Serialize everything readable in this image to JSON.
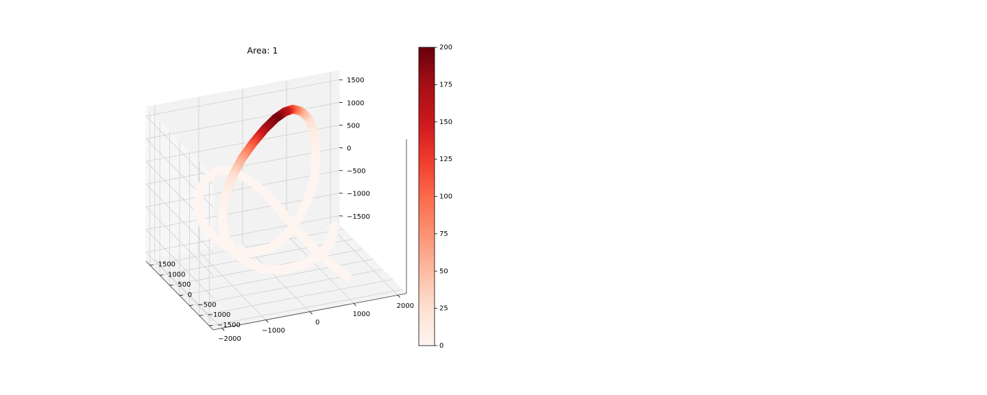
{
  "chart_data": {
    "type": "scatter3d",
    "title": "Area: 1",
    "xlabel": "",
    "ylabel": "",
    "zlabel": "",
    "x_ticks": [
      "−2000",
      "−1000",
      "0",
      "1000",
      "2000"
    ],
    "y_ticks": [
      "−1500",
      "−1000",
      "−500",
      "0",
      "500",
      "1000",
      "1500"
    ],
    "z_ticks": [
      "−1500",
      "−1000",
      "−500",
      "0",
      "500",
      "1000",
      "1500"
    ],
    "xlim": [
      -2200,
      2200
    ],
    "ylim": [
      -1700,
      1700
    ],
    "zlim": [
      -1700,
      1700
    ],
    "grid": true,
    "colormap": "Reds",
    "colorbar": {
      "min": 0,
      "max": 200,
      "ticks": [
        "0",
        "25",
        "50",
        "75",
        "100",
        "125",
        "150",
        "175",
        "200"
      ],
      "colors": [
        "#fff5f0",
        "#fee0d2",
        "#fcbba1",
        "#fc9272",
        "#fb6a4a",
        "#ef3b2c",
        "#cb181d",
        "#a50f15",
        "#67000d"
      ]
    },
    "series": [
      {
        "points": [
          {
            "x": 950,
            "y": -1500,
            "z": -1200,
            "c": 0
          },
          {
            "x": 700,
            "y": -1100,
            "z": -1000,
            "c": 0
          },
          {
            "x": 500,
            "y": -700,
            "z": -800,
            "c": 0
          },
          {
            "x": 300,
            "y": -300,
            "z": -550,
            "c": 0
          },
          {
            "x": 150,
            "y": 100,
            "z": -300,
            "c": 0
          },
          {
            "x": 0,
            "y": 450,
            "z": -80,
            "c": 0
          },
          {
            "x": -200,
            "y": 750,
            "z": 100,
            "c": 0
          },
          {
            "x": -450,
            "y": 1000,
            "z": 250,
            "c": 0
          },
          {
            "x": -750,
            "y": 1150,
            "z": 300,
            "c": 0
          },
          {
            "x": -1050,
            "y": 1150,
            "z": 200,
            "c": 0
          },
          {
            "x": -1300,
            "y": 1000,
            "z": 0,
            "c": 0
          },
          {
            "x": -1450,
            "y": 750,
            "z": -250,
            "c": 0
          },
          {
            "x": -1450,
            "y": 450,
            "z": -500,
            "c": 0
          },
          {
            "x": -1300,
            "y": 150,
            "z": -700,
            "c": 0
          },
          {
            "x": -1050,
            "y": -100,
            "z": -850,
            "c": 0
          },
          {
            "x": -700,
            "y": -300,
            "z": -900,
            "c": 0
          },
          {
            "x": -300,
            "y": -350,
            "z": -850,
            "c": 0
          },
          {
            "x": 100,
            "y": -250,
            "z": -700,
            "c": 0
          },
          {
            "x": 500,
            "y": -50,
            "z": -450,
            "c": 0
          },
          {
            "x": 850,
            "y": 250,
            "z": -200,
            "c": 0
          },
          {
            "x": 1150,
            "y": 600,
            "z": 50,
            "c": 0
          },
          {
            "x": 1350,
            "y": 1000,
            "z": 350,
            "c": 2
          },
          {
            "x": 1450,
            "y": 1300,
            "z": 650,
            "c": 8
          },
          {
            "x": 1400,
            "y": 1500,
            "z": 900,
            "c": 25
          },
          {
            "x": 1250,
            "y": 1550,
            "z": 1050,
            "c": 55
          },
          {
            "x": 1050,
            "y": 1500,
            "z": 1150,
            "c": 100
          },
          {
            "x": 800,
            "y": 1350,
            "z": 1200,
            "c": 160
          },
          {
            "x": 500,
            "y": 1150,
            "z": 1200,
            "c": 195
          },
          {
            "x": 150,
            "y": 900,
            "z": 1150,
            "c": 175
          },
          {
            "x": -250,
            "y": 600,
            "z": 1050,
            "c": 120
          },
          {
            "x": -650,
            "y": 300,
            "z": 900,
            "c": 65
          },
          {
            "x": -1000,
            "y": 0,
            "z": 700,
            "c": 25
          },
          {
            "x": -1300,
            "y": -300,
            "z": 450,
            "c": 6
          },
          {
            "x": -1500,
            "y": -600,
            "z": 150,
            "c": 1
          },
          {
            "x": -1550,
            "y": -850,
            "z": -150,
            "c": 0
          },
          {
            "x": -1400,
            "y": -1050,
            "z": -450,
            "c": 0
          },
          {
            "x": -1100,
            "y": -1150,
            "z": -700,
            "c": 0
          },
          {
            "x": -700,
            "y": -1150,
            "z": -900,
            "c": 0
          },
          {
            "x": -250,
            "y": -1050,
            "z": -1000,
            "c": 0
          },
          {
            "x": 250,
            "y": -900,
            "z": -1050,
            "c": 0
          },
          {
            "x": 700,
            "y": -700,
            "z": -1000,
            "c": 0
          },
          {
            "x": 1050,
            "y": -450,
            "z": -900,
            "c": 0
          },
          {
            "x": 1250,
            "y": -150,
            "z": -750,
            "c": 0
          }
        ]
      }
    ]
  }
}
